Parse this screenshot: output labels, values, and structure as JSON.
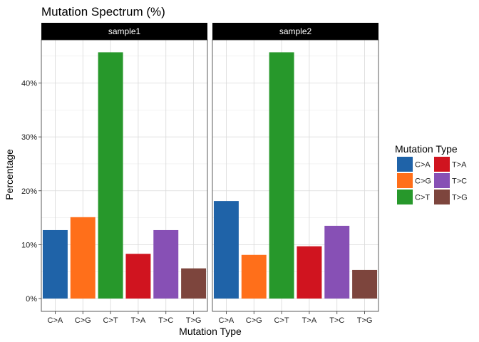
{
  "chart_data": {
    "type": "bar",
    "title": "Mutation Spectrum (%)",
    "xlabel": "Mutation Type",
    "ylabel": "Percentage",
    "ylim": [
      0,
      0.48
    ],
    "y_ticks": [
      0,
      0.1,
      0.2,
      0.3,
      0.4
    ],
    "y_tick_labels": [
      "0%",
      "10%",
      "20%",
      "30%",
      "40%"
    ],
    "categories": [
      "C>A",
      "C>G",
      "C>T",
      "T>A",
      "T>C",
      "T>G"
    ],
    "colors": [
      "#1f63a8",
      "#ff6f1a",
      "#27982b",
      "#d0141f",
      "#8750b5",
      "#7d453d"
    ],
    "facets": [
      {
        "name": "sample1",
        "values": [
          0.127,
          0.151,
          0.457,
          0.083,
          0.127,
          0.056
        ]
      },
      {
        "name": "sample2",
        "values": [
          0.181,
          0.081,
          0.457,
          0.097,
          0.135,
          0.053
        ]
      }
    ],
    "legend": {
      "title": "Mutation Type",
      "placement": "right",
      "entries": [
        "C>A",
        "C>G",
        "C>T",
        "T>A",
        "T>C",
        "T>G"
      ]
    },
    "grid": true
  }
}
